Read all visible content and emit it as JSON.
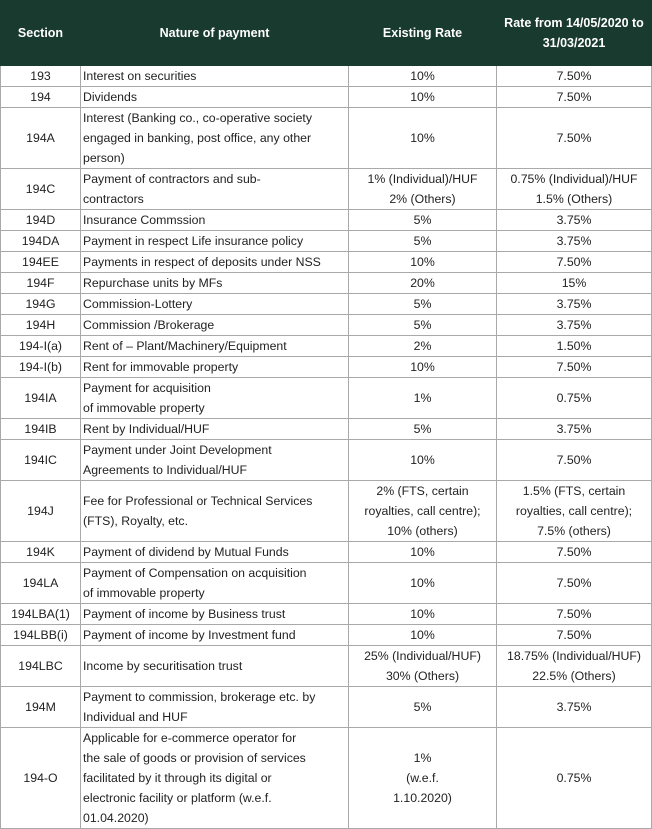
{
  "table": {
    "headers": [
      "Section",
      "Nature of payment",
      "Existing Rate",
      "Rate from 14/05/2020 to 31/03/2021"
    ],
    "rows": [
      {
        "section": "193",
        "nature": [
          "Interest on securities"
        ],
        "existing": [
          "10%"
        ],
        "new": [
          "7.50%"
        ]
      },
      {
        "section": "194",
        "nature": [
          "Dividends"
        ],
        "existing": [
          "10%"
        ],
        "new": [
          "7.50%"
        ]
      },
      {
        "section": "194A",
        "nature": [
          "Interest (Banking co., co-operative society",
          "engaged in banking, post office, any other",
          "person)"
        ],
        "existing": [
          "10%"
        ],
        "new": [
          "7.50%"
        ]
      },
      {
        "section": "194C",
        "nature": [
          "Payment of contractors and sub-",
          "contractors"
        ],
        "existing": [
          "1% (Individual)/HUF",
          "2% (Others)"
        ],
        "new": [
          "0.75% (Individual)/HUF",
          "1.5% (Others)"
        ]
      },
      {
        "section": "194D",
        "nature": [
          "Insurance Commssion"
        ],
        "existing": [
          "5%"
        ],
        "new": [
          "3.75%"
        ]
      },
      {
        "section": "194DA",
        "nature": [
          "Payment in respect Life insurance policy"
        ],
        "existing": [
          "5%"
        ],
        "new": [
          "3.75%"
        ]
      },
      {
        "section": "194EE",
        "nature": [
          "Payments in respect of deposits under NSS"
        ],
        "existing": [
          "10%"
        ],
        "new": [
          "7.50%"
        ]
      },
      {
        "section": "194F",
        "nature": [
          "Repurchase units by MFs"
        ],
        "existing": [
          "20%"
        ],
        "new": [
          "15%"
        ]
      },
      {
        "section": "194G",
        "nature": [
          "Commission-Lottery"
        ],
        "existing": [
          "5%"
        ],
        "new": [
          "3.75%"
        ]
      },
      {
        "section": "194H",
        "nature": [
          "Commission /Brokerage"
        ],
        "existing": [
          "5%"
        ],
        "new": [
          "3.75%"
        ]
      },
      {
        "section": "194-I(a)",
        "nature": [
          "Rent of – Plant/Machinery/Equipment"
        ],
        "existing": [
          "2%"
        ],
        "new": [
          "1.50%"
        ]
      },
      {
        "section": "194-I(b)",
        "nature": [
          "Rent for immovable property"
        ],
        "existing": [
          "10%"
        ],
        "new": [
          "7.50%"
        ]
      },
      {
        "section": "194IA",
        "nature": [
          "Payment for acquisition",
          "of immovable property"
        ],
        "existing": [
          "1%"
        ],
        "new": [
          "0.75%"
        ]
      },
      {
        "section": "194IB",
        "nature": [
          "Rent by Individual/HUF"
        ],
        "existing": [
          "5%"
        ],
        "new": [
          "3.75%"
        ]
      },
      {
        "section": "194IC",
        "nature": [
          "Payment under Joint Development",
          "Agreements to Individual/HUF"
        ],
        "existing": [
          "10%"
        ],
        "new": [
          "7.50%"
        ]
      },
      {
        "section": "194J",
        "nature": [
          "Fee for Professional or Technical Services",
          "(FTS), Royalty, etc."
        ],
        "existing": [
          "2% (FTS, certain",
          "royalties, call centre);",
          "10% (others)"
        ],
        "new": [
          "1.5% (FTS, certain",
          "royalties, call centre);",
          "7.5% (others)"
        ]
      },
      {
        "section": "194K",
        "nature": [
          "Payment of dividend by Mutual Funds"
        ],
        "existing": [
          "10%"
        ],
        "new": [
          "7.50%"
        ]
      },
      {
        "section": "194LA",
        "nature": [
          "Payment of Compensation on acquisition",
          "of immovable property"
        ],
        "existing": [
          "10%"
        ],
        "new": [
          "7.50%"
        ]
      },
      {
        "section": "194LBA(1)",
        "nature": [
          "Payment of income by Business trust"
        ],
        "existing": [
          "10%"
        ],
        "new": [
          "7.50%"
        ]
      },
      {
        "section": "194LBB(i)",
        "nature": [
          "Payment of income by Investment fund"
        ],
        "existing": [
          "10%"
        ],
        "new": [
          "7.50%"
        ]
      },
      {
        "section": "194LBC",
        "nature": [
          "Income by securitisation trust"
        ],
        "existing": [
          "25% (Individual/HUF)",
          "30% (Others)"
        ],
        "new": [
          "18.75% (Individual/HUF)",
          "22.5% (Others)"
        ]
      },
      {
        "section": "194M",
        "nature": [
          "Payment to commission, brokerage etc. by",
          "Individual and HUF"
        ],
        "existing": [
          "5%"
        ],
        "new": [
          "3.75%"
        ]
      },
      {
        "section": "194-O",
        "nature": [
          "Applicable for e-commerce operator for",
          "the sale of goods or provision of services",
          "facilitated by it through its digital or",
          "electronic facility or platform (w.e.f.",
          "01.04.2020)"
        ],
        "existing": [
          "1%",
          "(w.e.f.",
          "1.10.2020)"
        ],
        "new": [
          "0.75%"
        ]
      }
    ]
  }
}
